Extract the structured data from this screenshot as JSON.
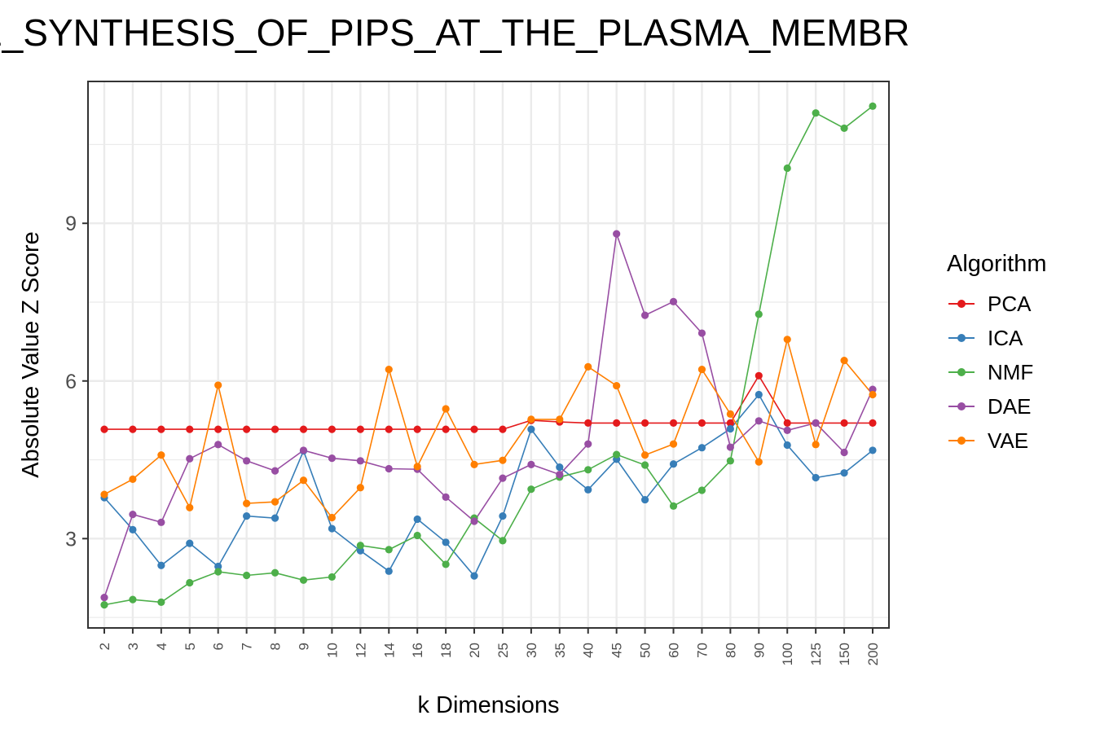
{
  "chart_data": {
    "type": "line",
    "title": "E_SYNTHESIS_OF_PIPS_AT_THE_PLASMA_MEMBR",
    "xlabel": "k Dimensions",
    "ylabel": "Absolute Value Z Score",
    "categories": [
      "2",
      "3",
      "4",
      "5",
      "6",
      "7",
      "8",
      "9",
      "10",
      "12",
      "14",
      "16",
      "18",
      "20",
      "25",
      "30",
      "35",
      "40",
      "45",
      "50",
      "60",
      "70",
      "80",
      "90",
      "100",
      "125",
      "150",
      "200"
    ],
    "yticks": [
      3,
      6,
      9
    ],
    "ylim": [
      1.3,
      11.7
    ],
    "grid": true,
    "legend": {
      "title": "Algorithm",
      "position": "right"
    },
    "series": [
      {
        "name": "PCA",
        "color": "#e41a1c",
        "values": [
          5.08,
          5.08,
          5.08,
          5.08,
          5.08,
          5.08,
          5.08,
          5.08,
          5.08,
          5.08,
          5.08,
          5.08,
          5.08,
          5.08,
          5.08,
          5.25,
          5.22,
          5.2,
          5.2,
          5.2,
          5.2,
          5.2,
          5.2,
          6.1,
          5.2,
          5.2,
          5.2,
          5.2
        ]
      },
      {
        "name": "ICA",
        "color": "#377eb8",
        "values": [
          3.78,
          3.17,
          2.49,
          2.91,
          2.47,
          3.43,
          3.39,
          4.67,
          3.19,
          2.77,
          2.38,
          3.37,
          2.93,
          2.29,
          3.43,
          5.08,
          4.36,
          3.93,
          4.51,
          3.74,
          4.42,
          4.73,
          5.09,
          5.74,
          4.78,
          4.16,
          4.25,
          4.68
        ]
      },
      {
        "name": "NMF",
        "color": "#4daf4a",
        "values": [
          1.74,
          1.84,
          1.79,
          2.16,
          2.37,
          2.3,
          2.35,
          2.21,
          2.27,
          2.87,
          2.79,
          3.06,
          2.51,
          3.39,
          2.96,
          3.94,
          4.17,
          4.31,
          4.6,
          4.4,
          3.62,
          3.92,
          4.48,
          7.27,
          10.05,
          11.1,
          10.81,
          11.23
        ]
      },
      {
        "name": "DAE",
        "color": "#984ea3",
        "values": [
          1.88,
          3.46,
          3.31,
          4.52,
          4.79,
          4.48,
          4.29,
          4.68,
          4.53,
          4.48,
          4.33,
          4.32,
          3.79,
          3.33,
          4.15,
          4.41,
          4.22,
          4.8,
          8.8,
          7.25,
          7.51,
          6.91,
          4.74,
          5.24,
          5.06,
          5.2,
          4.64,
          5.84
        ]
      },
      {
        "name": "VAE",
        "color": "#ff7f00",
        "values": [
          3.84,
          4.13,
          4.59,
          3.59,
          5.92,
          3.67,
          3.7,
          4.11,
          3.4,
          3.97,
          6.22,
          4.37,
          5.47,
          4.41,
          4.49,
          5.27,
          5.27,
          6.27,
          5.91,
          4.59,
          4.8,
          6.22,
          5.37,
          4.46,
          6.79,
          4.79,
          6.39,
          5.74
        ]
      }
    ]
  }
}
